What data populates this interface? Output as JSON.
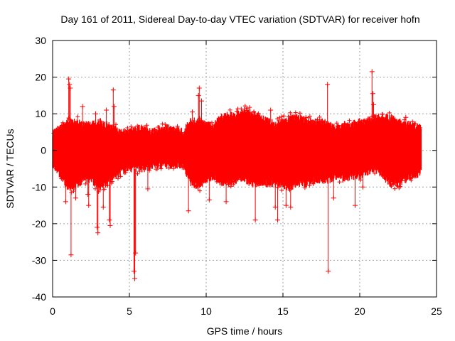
{
  "chart_data": {
    "type": "scatter",
    "title": "Day 161 of 2011, Sidereal Day-to-day VTEC variation (SDTVAR) for receiver hofn",
    "xlabel": "GPS time / hours",
    "ylabel": "SDTVAR / TECUs",
    "xlim": [
      0,
      25
    ],
    "ylim": [
      -40,
      30
    ],
    "xticks": [
      "0",
      "5",
      "10",
      "15",
      "20",
      "25"
    ],
    "yticks": [
      "30",
      "20",
      "10",
      "0",
      "-10",
      "-20",
      "-30",
      "-40"
    ],
    "grid": true,
    "marker": "+",
    "color": "#ff0000",
    "x_data_range": [
      0,
      24
    ],
    "envelope": {
      "x": [
        0,
        0.5,
        1,
        1.5,
        2,
        2.5,
        3,
        3.5,
        4,
        4.5,
        5,
        5.5,
        6,
        6.5,
        7,
        7.5,
        8,
        8.5,
        9,
        9.5,
        10,
        10.5,
        11,
        11.5,
        12,
        12.5,
        13,
        13.5,
        14,
        14.5,
        15,
        15.5,
        16,
        16.5,
        17,
        17.5,
        18,
        18.5,
        19,
        19.5,
        20,
        20.5,
        21,
        21.5,
        22,
        22.5,
        23,
        23.5,
        24
      ],
      "upper": [
        5,
        6,
        8,
        8,
        7,
        7,
        8,
        7,
        6,
        5,
        5,
        6,
        6,
        5,
        6,
        6,
        6,
        5,
        8,
        8,
        7,
        7,
        9,
        10,
        10,
        11,
        10,
        9,
        8,
        7,
        8,
        9,
        9,
        8,
        8,
        8,
        7,
        6,
        7,
        7,
        8,
        8,
        9,
        9,
        9,
        8,
        7,
        7,
        6
      ],
      "lower": [
        -4,
        -7,
        -10,
        -10,
        -8,
        -8,
        -10,
        -9,
        -7,
        -6,
        -5,
        -5,
        -5,
        -4,
        -4,
        -4,
        -4,
        -4,
        -9,
        -10,
        -8,
        -7,
        -9,
        -9,
        -8,
        -8,
        -9,
        -9,
        -9,
        -9,
        -10,
        -10,
        -9,
        -9,
        -8,
        -8,
        -8,
        -7,
        -8,
        -7,
        -7,
        -6,
        -5,
        -7,
        -9,
        -9,
        -8,
        -7,
        -6
      ]
    },
    "spikes": [
      {
        "x": 1.05,
        "y": 19.5
      },
      {
        "x": 1.1,
        "y": 18.0
      },
      {
        "x": 1.15,
        "y": 17.0
      },
      {
        "x": 1.2,
        "y": -28.5
      },
      {
        "x": 0.85,
        "y": -14.0
      },
      {
        "x": 1.5,
        "y": -13.0
      },
      {
        "x": 1.95,
        "y": 12.0
      },
      {
        "x": 2.3,
        "y": -12.0
      },
      {
        "x": 2.35,
        "y": -15.0
      },
      {
        "x": 2.8,
        "y": 10.0
      },
      {
        "x": 2.9,
        "y": -21.0
      },
      {
        "x": 2.95,
        "y": -22.5
      },
      {
        "x": 3.3,
        "y": -15.5
      },
      {
        "x": 3.5,
        "y": 11.0
      },
      {
        "x": 3.7,
        "y": -19.0
      },
      {
        "x": 3.75,
        "y": -20.5
      },
      {
        "x": 3.95,
        "y": 16.5
      },
      {
        "x": 4.0,
        "y": 12.0
      },
      {
        "x": 5.3,
        "y": -33.0
      },
      {
        "x": 5.35,
        "y": -35.0
      },
      {
        "x": 5.4,
        "y": -28.0
      },
      {
        "x": 6.2,
        "y": -10.5
      },
      {
        "x": 8.85,
        "y": -16.5
      },
      {
        "x": 9.1,
        "y": 10.5
      },
      {
        "x": 9.5,
        "y": 15.0
      },
      {
        "x": 9.55,
        "y": 17.0
      },
      {
        "x": 9.7,
        "y": 13.5
      },
      {
        "x": 10.2,
        "y": -13.5
      },
      {
        "x": 11.3,
        "y": -14.0
      },
      {
        "x": 13.2,
        "y": -19.0
      },
      {
        "x": 14.5,
        "y": -15.5
      },
      {
        "x": 14.65,
        "y": -19.0
      },
      {
        "x": 14.2,
        "y": 11.0
      },
      {
        "x": 15.2,
        "y": -15.0
      },
      {
        "x": 15.5,
        "y": -15.5
      },
      {
        "x": 17.9,
        "y": 18.0
      },
      {
        "x": 17.95,
        "y": -33.0
      },
      {
        "x": 18.3,
        "y": -13.0
      },
      {
        "x": 19.7,
        "y": -15.0
      },
      {
        "x": 20.2,
        "y": -10.0
      },
      {
        "x": 20.8,
        "y": 21.5
      },
      {
        "x": 20.85,
        "y": 15.5
      },
      {
        "x": 20.9,
        "y": 12.5
      },
      {
        "x": 23.0,
        "y": 9.0
      }
    ]
  }
}
